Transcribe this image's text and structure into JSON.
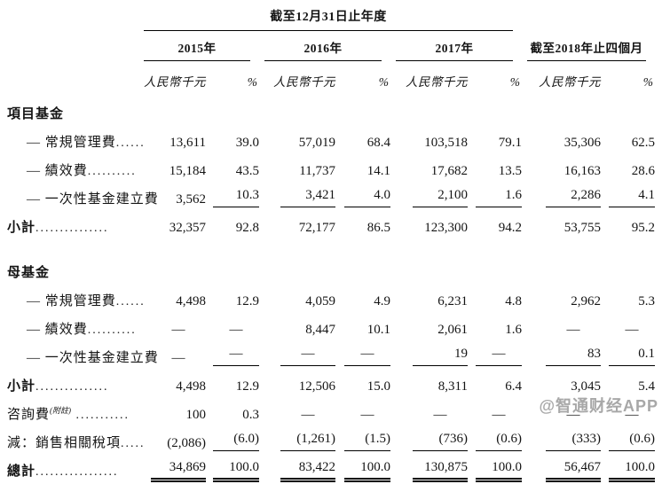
{
  "table": {
    "period_title": "截至12月31日止年度",
    "col_groups": [
      {
        "label": "2015年"
      },
      {
        "label": "2016年"
      },
      {
        "label": "2017年"
      },
      {
        "label": "截至2018年止四個月"
      }
    ],
    "unit_label": "人民幣千元",
    "pct_label": "%",
    "rows": [
      {
        "name": "section-project-funds",
        "type": "section",
        "label": "項目基金",
        "dots": "",
        "cells": [
          "",
          "",
          "",
          "",
          "",
          "",
          "",
          ""
        ]
      },
      {
        "name": "pf-regular-management-fee",
        "type": "item",
        "label": "— 常規管理費",
        "dots": "......",
        "cells": [
          "13,611",
          "39.0",
          "57,019",
          "68.4",
          "103,518",
          "79.1",
          "35,306",
          "62.5"
        ]
      },
      {
        "name": "pf-performance-fee",
        "type": "item",
        "label": "— 績效費",
        "dots": "..........",
        "cells": [
          "15,184",
          "43.5",
          "11,737",
          "14.1",
          "17,682",
          "13.5",
          "16,163",
          "28.6"
        ]
      },
      {
        "name": "pf-one-off-fund-setup-fee",
        "type": "item",
        "label": "— 一次性基金建立費",
        "dots": "",
        "rule": "single",
        "rule_skip_first": true,
        "cells": [
          "3,562",
          "10.3",
          "3,421",
          "4.0",
          "2,100",
          "1.6",
          "2,286",
          "4.1"
        ]
      },
      {
        "name": "pf-subtotal",
        "type": "subtotal",
        "label": "小計",
        "dots": "...............",
        "cells": [
          "32,357",
          "92.8",
          "72,177",
          "86.5",
          "123,300",
          "94.2",
          "53,755",
          "95.2"
        ]
      },
      {
        "name": "spacer-1",
        "type": "spacer"
      },
      {
        "name": "section-parent-funds",
        "type": "section",
        "label": "母基金",
        "dots": "",
        "cells": [
          "",
          "",
          "",
          "",
          "",
          "",
          "",
          ""
        ]
      },
      {
        "name": "mf-regular-management-fee",
        "type": "item",
        "label": "— 常規管理費",
        "dots": "......",
        "cells": [
          "4,498",
          "12.9",
          "4,059",
          "4.9",
          "6,231",
          "4.8",
          "2,962",
          "5.3"
        ]
      },
      {
        "name": "mf-performance-fee",
        "type": "item",
        "label": "— 績效費",
        "dots": "..........",
        "cells": [
          "—",
          "—",
          "8,447",
          "10.1",
          "2,061",
          "1.6",
          "—",
          "—"
        ]
      },
      {
        "name": "mf-one-off-fund-setup-fee",
        "type": "item",
        "label": "— 一次性基金建立費",
        "dots": "",
        "rule": "single",
        "rule_skip_first": true,
        "cells": [
          "—",
          "—",
          "—",
          "—",
          "19",
          "—",
          "83",
          "0.1"
        ]
      },
      {
        "name": "mf-subtotal",
        "type": "subtotal",
        "label": "小計",
        "dots": "...............",
        "cells": [
          "4,498",
          "12.9",
          "12,506",
          "15.0",
          "8,311",
          "6.4",
          "3,045",
          "5.4"
        ]
      },
      {
        "name": "advisory-fee",
        "type": "plain",
        "label": "咨詢費",
        "sup": "(附註)",
        "dots": " ...........",
        "cells": [
          "100",
          "0.3",
          "—",
          "—",
          "—",
          "—",
          "—",
          "—"
        ]
      },
      {
        "name": "less-sales-related-taxes",
        "type": "plain",
        "label": "減：銷售相關稅項",
        "dots": ".....",
        "rule": "single",
        "rule_skip_first": true,
        "cells": [
          "(2,086)",
          "(6.0)",
          "(1,261)",
          "(1.5)",
          "(736)",
          "(0.6)",
          "(333)",
          "(0.6)"
        ]
      },
      {
        "name": "total",
        "type": "total",
        "label": "總計",
        "dots": ".................",
        "rule": "double",
        "cells": [
          "34,869",
          "100.0",
          "83,422",
          "100.0",
          "130,875",
          "100.0",
          "56,467",
          "100.0"
        ]
      }
    ]
  },
  "watermark": {
    "text": "@智通财经APP"
  }
}
